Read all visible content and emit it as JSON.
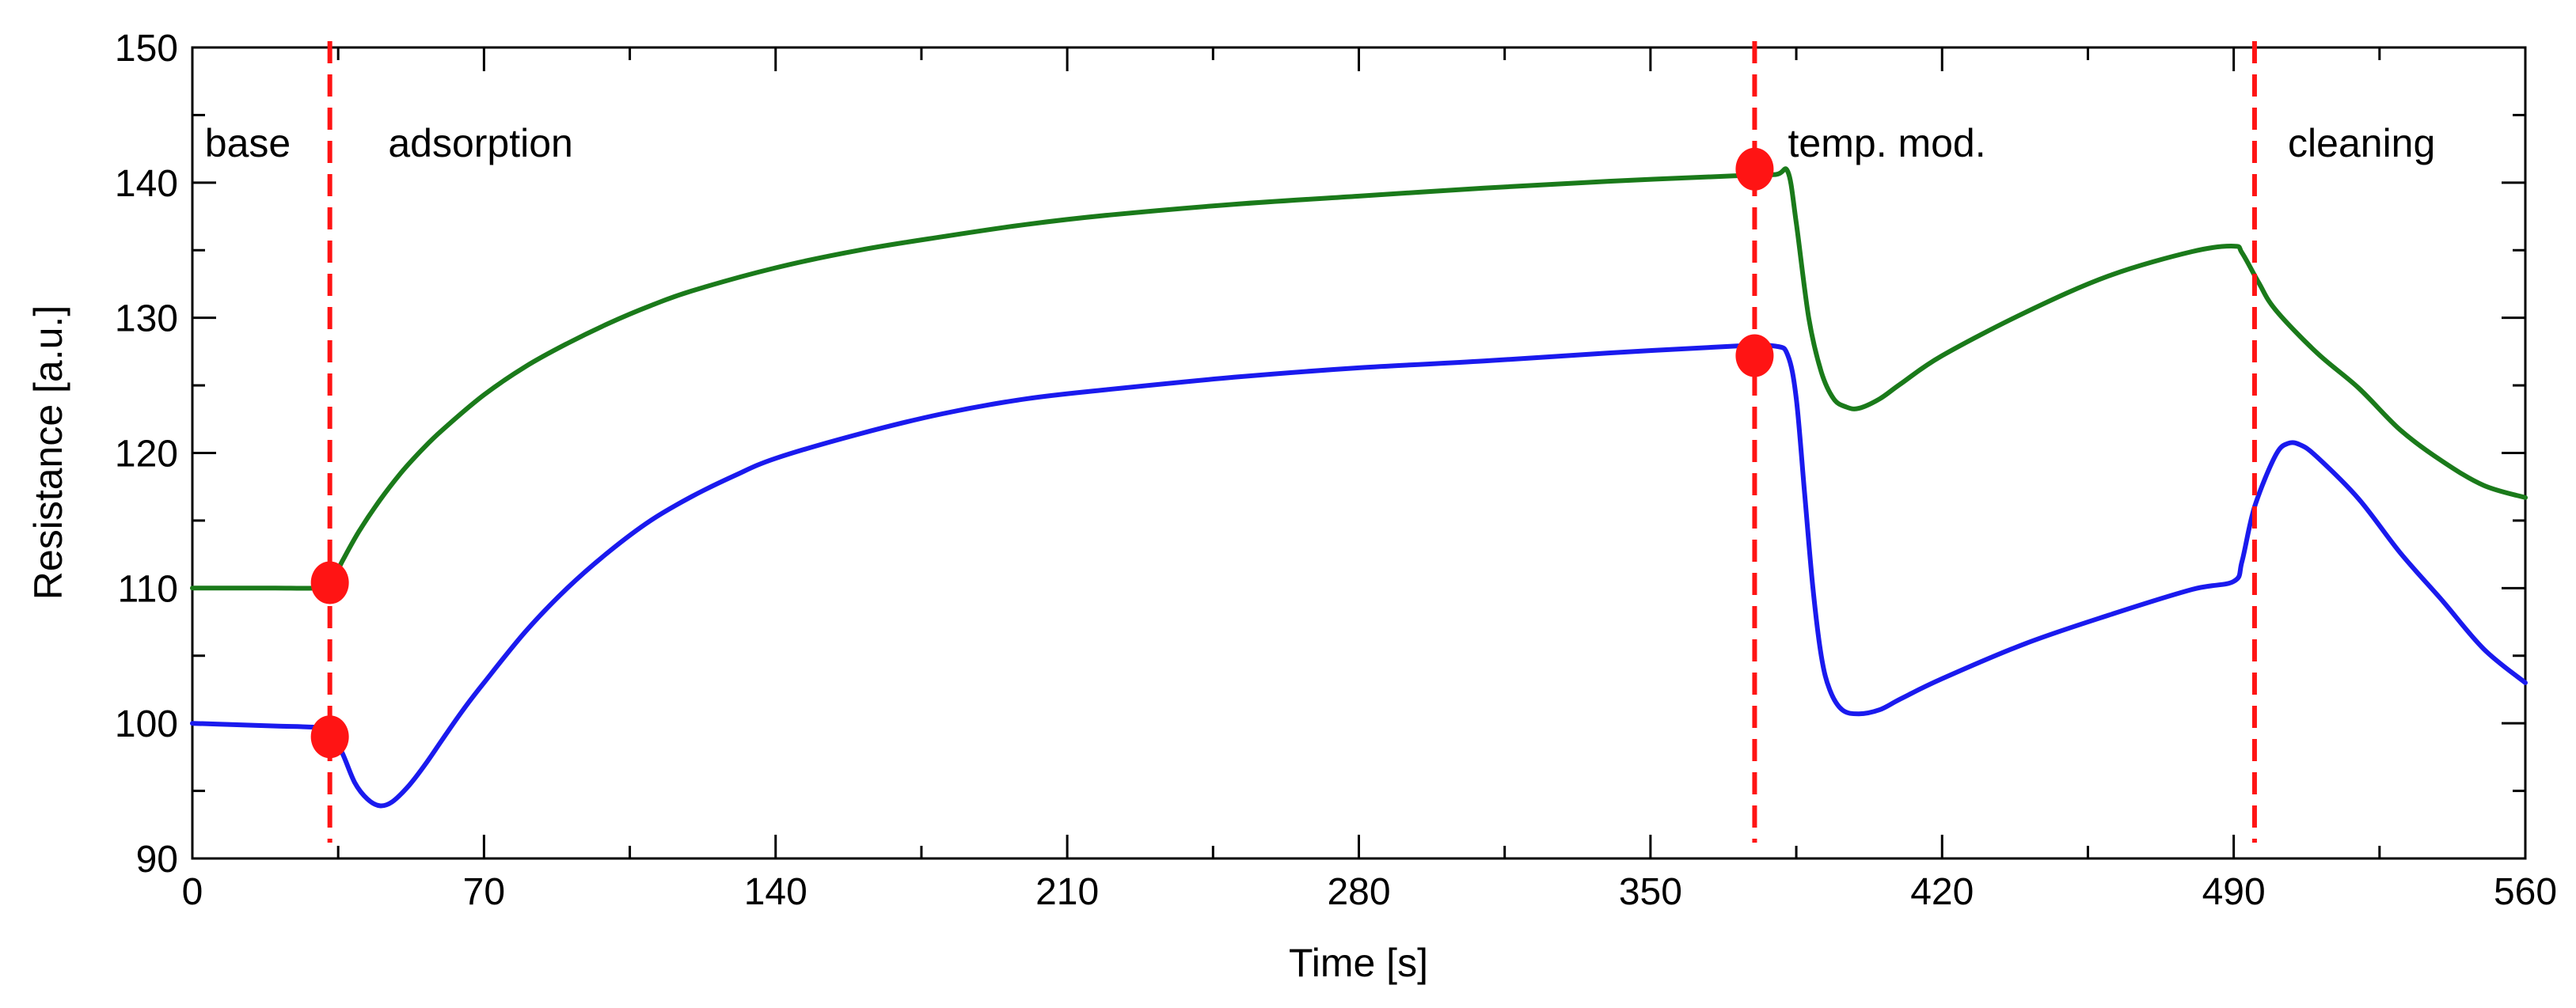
{
  "chart_data": {
    "type": "line",
    "title": "",
    "xlabel": "Time [s]",
    "ylabel": "Resistance [a.u.]",
    "xlim": [
      0,
      560
    ],
    "ylim": [
      90,
      150
    ],
    "x_ticks": [
      0,
      70,
      140,
      210,
      280,
      350,
      420,
      490,
      560
    ],
    "x_tick_labels": [
      "0",
      "70",
      "140",
      "210",
      "280",
      "350",
      "420",
      "490",
      "560"
    ],
    "y_ticks": [
      90,
      100,
      110,
      120,
      130,
      140,
      150
    ],
    "y_tick_labels": [
      "90",
      "100",
      "110",
      "120",
      "130",
      "140",
      "150"
    ],
    "grid": false,
    "legend": "none",
    "colors": {
      "green": "#1a7a1a",
      "blue": "#1a1aee",
      "red": "#ff1414"
    },
    "series": [
      {
        "name": "green",
        "color": "#1a7a1a",
        "x": [
          0,
          10,
          20,
          30,
          33,
          36,
          40,
          45,
          50,
          55,
          60,
          70,
          80,
          90,
          100,
          110,
          120,
          140,
          160,
          180,
          200,
          220,
          250,
          280,
          310,
          340,
          370,
          380,
          383,
          385,
          388,
          391,
          394,
          397,
          400,
          405,
          410,
          420,
          440,
          460,
          480,
          490,
          492,
          496,
          500,
          510,
          520,
          530,
          540,
          550,
          560
        ],
        "values": [
          110,
          110,
          110,
          110,
          110.2,
          112,
          114.2,
          116.5,
          118.5,
          120.2,
          121.7,
          124.3,
          126.4,
          128.1,
          129.6,
          130.9,
          132,
          133.7,
          135,
          136,
          136.9,
          137.6,
          138.4,
          139,
          139.6,
          140.1,
          140.5,
          140.6,
          140.8,
          137,
          130,
          126,
          124,
          123.4,
          123.3,
          124,
          125.1,
          127.2,
          130.4,
          133.1,
          134.9,
          135.3,
          134.8,
          132.6,
          130.6,
          127.4,
          124.8,
          121.7,
          119.4,
          117.6,
          116.7
        ]
      },
      {
        "name": "blue",
        "color": "#1a1aee",
        "x": [
          0,
          10,
          20,
          30,
          33,
          36,
          39,
          42,
          45,
          48,
          52,
          56,
          60,
          65,
          70,
          80,
          90,
          100,
          110,
          120,
          130,
          140,
          160,
          180,
          200,
          220,
          250,
          280,
          310,
          340,
          370,
          380,
          383,
          385,
          387,
          389,
          391,
          393,
          396,
          400,
          405,
          410,
          420,
          440,
          460,
          480,
          490,
          492,
          495,
          500,
          503,
          506,
          510,
          520,
          530,
          540,
          550,
          560
        ],
        "values": [
          100,
          99.9,
          99.8,
          99.7,
          99.5,
          97.8,
          95.6,
          94.4,
          93.9,
          94.2,
          95.4,
          97,
          98.8,
          101,
          103,
          106.8,
          110,
          112.7,
          115,
          116.8,
          118.3,
          119.6,
          121.4,
          122.9,
          124,
          124.7,
          125.6,
          126.3,
          126.8,
          127.4,
          127.9,
          127.9,
          127.2,
          124,
          117,
          110,
          105,
          102.5,
          101,
          100.7,
          101,
          101.8,
          103.3,
          105.9,
          108,
          109.9,
          110.5,
          112,
          116,
          119.8,
          120.7,
          120.6,
          119.7,
          116.6,
          112.6,
          109.1,
          105.5,
          103
        ]
      }
    ],
    "markers": [
      {
        "x": 33,
        "y": 110.4
      },
      {
        "x": 33,
        "y": 99
      },
      {
        "x": 375,
        "y": 141
      },
      {
        "x": 375,
        "y": 127.2
      }
    ],
    "phase_boundaries": [
      33,
      375,
      495
    ],
    "annotations": [
      {
        "text": "base",
        "x": 3
      },
      {
        "text": "adsorption",
        "x": 47
      },
      {
        "text": "temp. mod.",
        "x": 383
      },
      {
        "text": "cleaning",
        "x": 503
      }
    ]
  }
}
